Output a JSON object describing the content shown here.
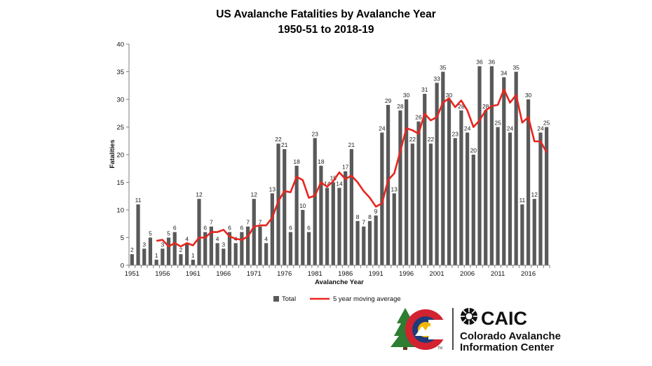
{
  "chart_data": {
    "type": "bar",
    "title": "US Avalanche Fatalities by Avalanche Year",
    "subtitle": "1950-51  to 2018-19",
    "xlabel": "Avalanche Year",
    "ylabel": "Fatalities",
    "ylim": [
      0,
      40
    ],
    "yticks": [
      0,
      5,
      10,
      15,
      20,
      25,
      30,
      35,
      40
    ],
    "xtick_labels": [
      "1951",
      "1956",
      "1961",
      "1966",
      "1971",
      "1976",
      "1981",
      "1986",
      "1991",
      "1996",
      "2001",
      "2006",
      "2011",
      "2016"
    ],
    "categories": [
      1951,
      1952,
      1953,
      1954,
      1955,
      1956,
      1957,
      1958,
      1959,
      1960,
      1961,
      1962,
      1963,
      1964,
      1965,
      1966,
      1967,
      1968,
      1969,
      1970,
      1971,
      1972,
      1973,
      1974,
      1975,
      1976,
      1977,
      1978,
      1979,
      1980,
      1981,
      1982,
      1983,
      1984,
      1985,
      1986,
      1987,
      1988,
      1989,
      1990,
      1991,
      1992,
      1993,
      1994,
      1995,
      1996,
      1997,
      1998,
      1999,
      2000,
      2001,
      2002,
      2003,
      2004,
      2005,
      2006,
      2007,
      2008,
      2009,
      2010,
      2011,
      2012,
      2013,
      2014,
      2015,
      2016,
      2017,
      2018,
      2019
    ],
    "grid": false,
    "legend_position": "bottom",
    "series": [
      {
        "name": "Total",
        "kind": "bar",
        "color": "#595959",
        "values": [
          2,
          11,
          3,
          5,
          1,
          3,
          5,
          6,
          2,
          4,
          1,
          12,
          6,
          7,
          4,
          3,
          6,
          4,
          6,
          7,
          12,
          7,
          4,
          13,
          22,
          21,
          6,
          18,
          10,
          6,
          23,
          18,
          14,
          15,
          14,
          17,
          21,
          8,
          7,
          8,
          9,
          24,
          29,
          13,
          28,
          30,
          22,
          26,
          31,
          22,
          33,
          35,
          30,
          23,
          28,
          24,
          20,
          36,
          28,
          36,
          25,
          34,
          24,
          35,
          11,
          30,
          12,
          24,
          25
        ]
      },
      {
        "name": "5 year moving average",
        "kind": "line",
        "color": "#e8251f",
        "values": [
          null,
          null,
          null,
          null,
          4.4,
          4.6,
          3.4,
          4.0,
          3.4,
          4.0,
          3.6,
          5.0,
          5.0,
          6.0,
          6.0,
          6.4,
          5.2,
          4.8,
          4.6,
          5.2,
          7.0,
          7.2,
          7.2,
          8.6,
          11.6,
          13.4,
          13.2,
          16.0,
          15.4,
          12.2,
          12.6,
          15.0,
          14.2,
          15.2,
          16.8,
          15.6,
          16.2,
          15.0,
          13.4,
          12.2,
          10.6,
          11.2,
          15.4,
          16.6,
          20.6,
          24.8,
          24.4,
          23.8,
          27.4,
          26.2,
          26.8,
          29.4,
          30.2,
          28.6,
          29.8,
          28.0,
          25.0,
          26.2,
          28.0,
          28.8,
          29.0,
          31.8,
          29.4,
          30.8,
          25.8,
          26.8,
          22.4,
          22.4,
          20.4
        ]
      }
    ]
  },
  "legend": {
    "total_label": "Total",
    "avg_label": "5 year moving average"
  },
  "logo": {
    "name": "CAIC",
    "line1": "Colorado Avalanche",
    "line2": "Information Center",
    "tm": "TM",
    "colors": {
      "red": "#d32230",
      "blue": "#1f3a7a",
      "yellow": "#f2b705",
      "green": "#2e7d32",
      "dark": "#111111"
    }
  }
}
